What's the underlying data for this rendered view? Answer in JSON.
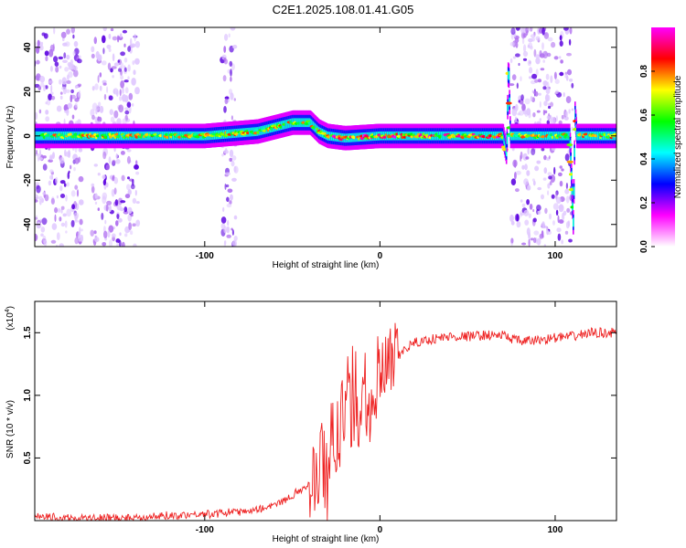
{
  "title": "C2E1.2025.108.01.41.G05",
  "chart_data": [
    {
      "type": "heatmap",
      "xlabel": "Height of straight line (km)",
      "ylabel": "Frequency (Hz)",
      "xlim": [
        -197,
        135
      ],
      "ylim": [
        -50,
        49
      ],
      "x_ticks": [
        -100,
        0,
        100
      ],
      "x_tick_labels": [
        "-100",
        "0",
        "100"
      ],
      "y_ticks": [
        -40,
        -20,
        0,
        20,
        40
      ],
      "y_tick_labels": [
        "-40",
        "-20",
        "0",
        "20",
        "40"
      ],
      "colorbar": {
        "label": "Normalized spectral amplitude",
        "range": [
          0,
          1
        ],
        "ticks": [
          0.0,
          0.2,
          0.4,
          0.6,
          0.8
        ],
        "tick_labels": [
          "0.0",
          "0.2",
          "0.4",
          "0.6",
          "0.8"
        ],
        "colors": [
          "#ffffff",
          "#ff00ff",
          "#0000ff",
          "#00ffff",
          "#00ff00",
          "#ffff00",
          "#ff0000",
          "#ff00ff"
        ]
      },
      "ridge": [
        [
          -197,
          0
        ],
        [
          -170,
          0
        ],
        [
          -140,
          0
        ],
        [
          -120,
          0
        ],
        [
          -100,
          0
        ],
        [
          -85,
          1
        ],
        [
          -70,
          2
        ],
        [
          -60,
          4
        ],
        [
          -50,
          6
        ],
        [
          -40,
          6
        ],
        [
          -35,
          2
        ],
        [
          -30,
          0
        ],
        [
          -20,
          -1
        ],
        [
          0,
          0
        ],
        [
          20,
          0
        ],
        [
          50,
          0
        ],
        [
          70,
          0
        ],
        [
          72,
          -8
        ],
        [
          73,
          34
        ],
        [
          74,
          0
        ],
        [
          108,
          0
        ],
        [
          110,
          -40
        ],
        [
          111,
          10
        ],
        [
          112,
          0
        ],
        [
          135,
          0
        ]
      ],
      "noise_bands": [
        [
          -197,
          -170
        ],
        [
          -165,
          -138
        ],
        [
          -90,
          -82
        ],
        [
          75,
          110
        ]
      ]
    },
    {
      "type": "line",
      "xlabel": "Height of straight line (km)",
      "ylabel": "SNR (10 * v/v)",
      "y_multiplier": "(x10",
      "y_multiplier_exp": "4",
      "y_multiplier_close": ")",
      "xlim": [
        -197,
        135
      ],
      "ylim": [
        0,
        1.75
      ],
      "x_ticks": [
        -100,
        0,
        100
      ],
      "x_tick_labels": [
        "-100",
        "0",
        "100"
      ],
      "y_ticks": [
        0.5,
        1.0,
        1.5
      ],
      "y_tick_labels": [
        "0.5",
        "1.0",
        "1.5"
      ],
      "color": "#ee2222",
      "series": [
        {
          "x": [
            -197,
            -185,
            -170,
            -150,
            -130,
            -110,
            -90,
            -75,
            -60,
            -50,
            -40,
            -33,
            -28,
            -24,
            -20,
            -16,
            -12,
            -8,
            -4,
            0,
            5,
            10,
            15,
            20,
            30,
            40,
            50,
            60,
            70,
            80,
            90,
            100,
            110,
            120,
            135
          ],
          "y": [
            0.03,
            0.02,
            0.02,
            0.02,
            0.03,
            0.05,
            0.06,
            0.08,
            0.12,
            0.2,
            0.3,
            0.45,
            0.6,
            0.75,
            0.9,
            0.95,
            1.0,
            1.05,
            1.08,
            1.12,
            1.2,
            1.3,
            1.38,
            1.42,
            1.45,
            1.47,
            1.47,
            1.48,
            1.48,
            1.43,
            1.44,
            1.46,
            1.47,
            1.5,
            1.5
          ]
        }
      ]
    }
  ]
}
